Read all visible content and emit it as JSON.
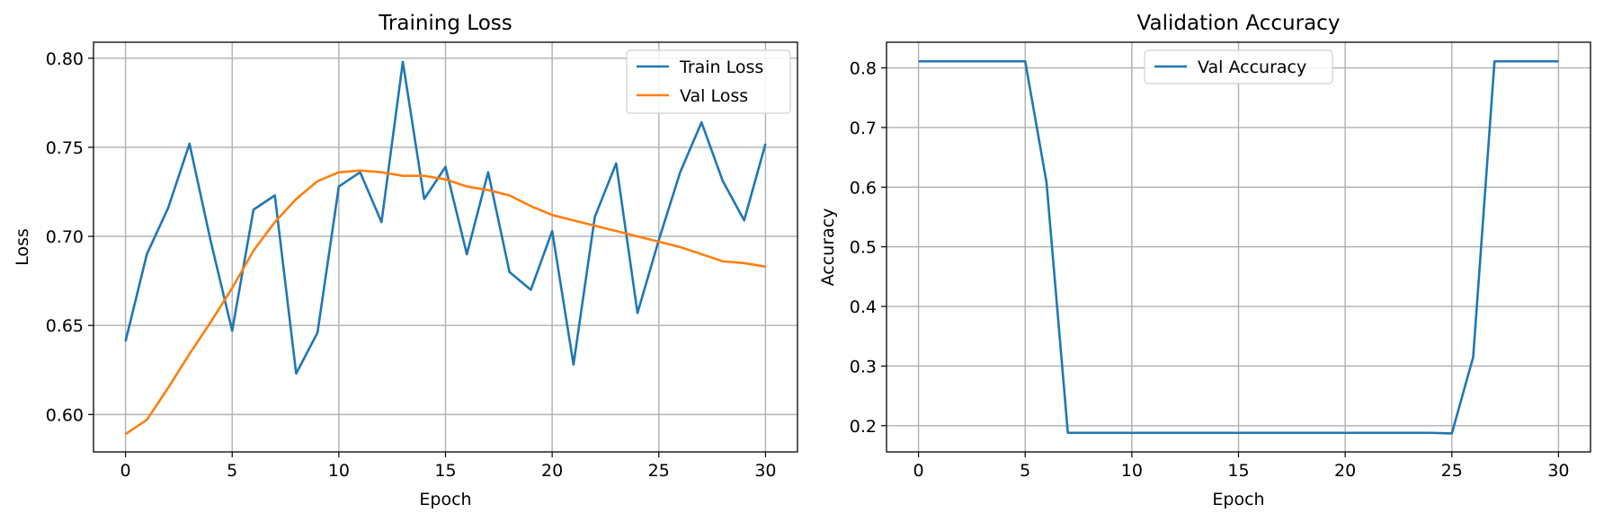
{
  "chart_data": [
    {
      "type": "line",
      "title": "Training Loss",
      "xlabel": "Epoch",
      "ylabel": "Loss",
      "xlim": [
        -1.5,
        31.5
      ],
      "ylim": [
        0.579,
        0.809
      ],
      "xticks": [
        0,
        5,
        10,
        15,
        20,
        25,
        30
      ],
      "yticks": [
        0.6,
        0.65,
        0.7,
        0.75,
        0.8
      ],
      "ytick_labels": [
        "0.60",
        "0.65",
        "0.70",
        "0.75",
        "0.80"
      ],
      "grid": true,
      "legend_position": "upper right",
      "x": [
        0,
        1,
        2,
        3,
        4,
        5,
        6,
        7,
        8,
        9,
        10,
        11,
        12,
        13,
        14,
        15,
        16,
        17,
        18,
        19,
        20,
        21,
        22,
        23,
        24,
        25,
        26,
        27,
        28,
        29,
        30
      ],
      "series": [
        {
          "name": "Train Loss",
          "color": "#1f77b4",
          "values": [
            0.641,
            0.69,
            0.716,
            0.752,
            0.697,
            0.647,
            0.715,
            0.723,
            0.623,
            0.646,
            0.728,
            0.736,
            0.708,
            0.798,
            0.721,
            0.739,
            0.69,
            0.736,
            0.68,
            0.67,
            0.703,
            0.628,
            0.711,
            0.741,
            0.657,
            0.698,
            0.736,
            0.764,
            0.731,
            0.709,
            0.752
          ]
        },
        {
          "name": "Val Loss",
          "color": "#ff7f0e",
          "values": [
            0.589,
            0.597,
            0.615,
            0.634,
            0.652,
            0.671,
            0.692,
            0.708,
            0.721,
            0.731,
            0.736,
            0.737,
            0.736,
            0.734,
            0.734,
            0.732,
            0.728,
            0.726,
            0.723,
            0.717,
            0.712,
            0.709,
            0.706,
            0.703,
            0.7,
            0.697,
            0.694,
            0.69,
            0.686,
            0.685,
            0.683
          ]
        }
      ]
    },
    {
      "type": "line",
      "title": "Validation Accuracy",
      "xlabel": "Epoch",
      "ylabel": "Accuracy",
      "xlim": [
        -1.5,
        31.5
      ],
      "ylim": [
        0.156,
        0.843
      ],
      "xticks": [
        0,
        5,
        10,
        15,
        20,
        25,
        30
      ],
      "yticks": [
        0.2,
        0.3,
        0.4,
        0.5,
        0.6,
        0.7,
        0.8
      ],
      "ytick_labels": [
        "0.2",
        "0.3",
        "0.4",
        "0.5",
        "0.6",
        "0.7",
        "0.8"
      ],
      "grid": true,
      "legend_position": "upper center",
      "x": [
        0,
        1,
        2,
        3,
        4,
        5,
        6,
        7,
        8,
        9,
        10,
        11,
        12,
        13,
        14,
        15,
        16,
        17,
        18,
        19,
        20,
        21,
        22,
        23,
        24,
        25,
        26,
        27,
        28,
        29,
        30
      ],
      "series": [
        {
          "name": "Val Accuracy",
          "color": "#1f77b4",
          "values": [
            0.811,
            0.811,
            0.811,
            0.811,
            0.811,
            0.811,
            0.608,
            0.188,
            0.188,
            0.188,
            0.188,
            0.188,
            0.188,
            0.188,
            0.188,
            0.188,
            0.188,
            0.188,
            0.188,
            0.188,
            0.188,
            0.188,
            0.188,
            0.188,
            0.188,
            0.187,
            0.315,
            0.811,
            0.811,
            0.811,
            0.811
          ]
        }
      ]
    }
  ]
}
